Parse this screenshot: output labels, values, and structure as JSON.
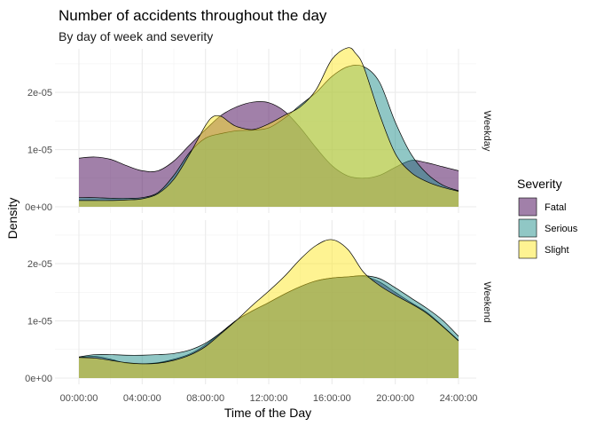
{
  "chart_data": {
    "type": "area",
    "title": "Number of accidents throughout the day",
    "subtitle": "By day of week and severity",
    "xlabel": "Time of the Day",
    "ylabel": "Density",
    "x_unit": "hours",
    "xlim": [
      0,
      24
    ],
    "ylim": [
      0,
      2.7e-05
    ],
    "grid": true,
    "legend_position": "right",
    "x_ticks": [
      {
        "value": 0,
        "label": "00:00:00"
      },
      {
        "value": 4,
        "label": "04:00:00"
      },
      {
        "value": 8,
        "label": "08:00:00"
      },
      {
        "value": 12,
        "label": "12:00:00"
      },
      {
        "value": 16,
        "label": "16:00:00"
      },
      {
        "value": 20,
        "label": "20:00:00"
      },
      {
        "value": 24,
        "label": "24:00:00"
      }
    ],
    "y_ticks": [
      {
        "value": 0,
        "label": "0e+00"
      },
      {
        "value": 1e-05,
        "label": "1e-05"
      },
      {
        "value": 2e-05,
        "label": "2e-05"
      }
    ],
    "legend": {
      "title": "Severity",
      "items": [
        {
          "name": "Fatal",
          "color": "#440154"
        },
        {
          "name": "Serious",
          "color": "#21908C"
        },
        {
          "name": "Slight",
          "color": "#FDE725"
        }
      ]
    },
    "fill_opacity": 0.5,
    "panels": [
      {
        "strip": "Weekday",
        "series": [
          {
            "name": "Fatal",
            "color": "#440154",
            "x": [
              0,
              1,
              2,
              3,
              4,
              5,
              6,
              7,
              8,
              9,
              10,
              11,
              12,
              13,
              14,
              15,
              16,
              17,
              18,
              19,
              20,
              21,
              22,
              23,
              24
            ],
            "y": [
              8.5e-06,
              8.7e-06,
              8.3e-06,
              7.2e-06,
              6.3e-06,
              6.3e-06,
              8e-06,
              1.08e-05,
              1.35e-05,
              1.6e-05,
              1.75e-05,
              1.83e-05,
              1.82e-05,
              1.67e-05,
              1.38e-05,
              1.03e-05,
              7.2e-06,
              5.4e-06,
              5e-06,
              5.5e-06,
              6.9e-06,
              8.1e-06,
              7.7e-06,
              7e-06,
              6.3e-06
            ]
          },
          {
            "name": "Serious",
            "color": "#21908C",
            "x": [
              0,
              1,
              2,
              3,
              4,
              5,
              6,
              7,
              8,
              9,
              10,
              11,
              12,
              13,
              14,
              15,
              16,
              17,
              18,
              19,
              20,
              21,
              22,
              23,
              24
            ],
            "y": [
              1.6e-06,
              1.6e-06,
              1.5e-06,
              1.5e-06,
              1.6e-06,
              2.5e-06,
              5.5e-06,
              9.5e-06,
              1.2e-05,
              1.28e-05,
              1.33e-05,
              1.34e-05,
              1.38e-05,
              1.55e-05,
              1.78e-05,
              2e-05,
              2.28e-05,
              2.45e-05,
              2.45e-05,
              2.18e-05,
              1.48e-05,
              9.2e-06,
              5.8e-06,
              3.8e-06,
              2.8e-06
            ]
          },
          {
            "name": "Slight",
            "color": "#FDE725",
            "x": [
              0,
              1,
              2,
              3,
              4,
              5,
              6,
              7,
              8,
              8.5,
              9,
              9.5,
              10,
              11,
              12,
              13,
              14,
              15,
              16,
              17,
              17.5,
              18,
              19,
              20,
              21,
              22,
              23,
              24
            ],
            "y": [
              1.1e-06,
              1.1e-06,
              1.1e-06,
              1.2e-06,
              1.4e-06,
              2.3e-06,
              4.8e-06,
              9.2e-06,
              1.42e-05,
              1.58e-05,
              1.58e-05,
              1.48e-05,
              1.4e-05,
              1.35e-05,
              1.45e-05,
              1.6e-05,
              1.75e-05,
              2.05e-05,
              2.58e-05,
              2.78e-05,
              2.68e-05,
              2.45e-05,
              1.62e-05,
              9.3e-06,
              6e-06,
              4.4e-06,
              3.4e-06,
              2.7e-06
            ]
          }
        ]
      },
      {
        "strip": "Weekend",
        "series": [
          {
            "name": "Fatal",
            "color": "#440154",
            "x": [
              0,
              1,
              2,
              3,
              4,
              5,
              6,
              7,
              8,
              9,
              10,
              11,
              12,
              13,
              14,
              15,
              16,
              17,
              18,
              19,
              20,
              21,
              22,
              23,
              24
            ],
            "y": [
              3.6e-06,
              3.8e-06,
              3.3e-06,
              2.6e-06,
              2.5e-06,
              2.7e-06,
              3.3e-06,
              4.2e-06,
              5.8e-06,
              8e-06,
              1.02e-05,
              1.18e-05,
              1.32e-05,
              1.47e-05,
              1.6e-05,
              1.7e-05,
              1.75e-05,
              1.77e-05,
              1.78e-05,
              1.68e-05,
              1.5e-05,
              1.32e-05,
              1.15e-05,
              9.1e-06,
              6.6e-06
            ]
          },
          {
            "name": "Serious",
            "color": "#21908C",
            "x": [
              0,
              1,
              2,
              3,
              4,
              5,
              6,
              7,
              8,
              9,
              10,
              11,
              12,
              13,
              14,
              15,
              16,
              17,
              18,
              19,
              20,
              21,
              22,
              23,
              24
            ],
            "y": [
              3.7e-06,
              4.1e-06,
              4.1e-06,
              4e-06,
              4e-06,
              4.1e-06,
              4.3e-06,
              4.9e-06,
              6.1e-06,
              8e-06,
              1.02e-05,
              1.18e-05,
              1.32e-05,
              1.47e-05,
              1.6e-05,
              1.7e-05,
              1.75e-05,
              1.77e-05,
              1.79e-05,
              1.74e-05,
              1.58e-05,
              1.4e-05,
              1.22e-05,
              1.01e-05,
              7.3e-06
            ]
          },
          {
            "name": "Slight",
            "color": "#FDE725",
            "x": [
              0,
              1,
              2,
              3,
              4,
              5,
              6,
              7,
              8,
              9,
              10,
              11,
              12,
              13,
              14,
              15,
              16,
              17,
              18,
              19,
              20,
              21,
              22,
              23,
              24
            ],
            "y": [
              3.6e-06,
              3.5e-06,
              3.1e-06,
              2.7e-06,
              2.5e-06,
              2.6e-06,
              3.1e-06,
              4e-06,
              5.5e-06,
              7.8e-06,
              1.02e-05,
              1.28e-05,
              1.52e-05,
              1.78e-05,
              2.08e-05,
              2.32e-05,
              2.42e-05,
              2.25e-05,
              1.85e-05,
              1.62e-05,
              1.45e-05,
              1.3e-05,
              1.13e-05,
              9e-06,
              6.5e-06
            ]
          }
        ]
      }
    ]
  }
}
